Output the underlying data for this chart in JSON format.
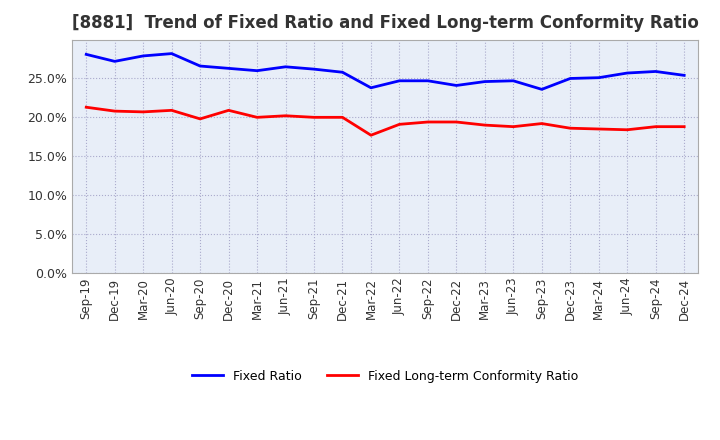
{
  "title": "[8881]  Trend of Fixed Ratio and Fixed Long-term Conformity Ratio",
  "x_labels": [
    "Sep-19",
    "Dec-19",
    "Mar-20",
    "Jun-20",
    "Sep-20",
    "Dec-20",
    "Mar-21",
    "Jun-21",
    "Sep-21",
    "Dec-21",
    "Mar-22",
    "Jun-22",
    "Sep-22",
    "Dec-22",
    "Mar-23",
    "Jun-23",
    "Sep-23",
    "Dec-23",
    "Mar-24",
    "Jun-24",
    "Sep-24",
    "Dec-24"
  ],
  "fixed_ratio": [
    0.281,
    0.272,
    0.279,
    0.282,
    0.266,
    0.263,
    0.26,
    0.265,
    0.262,
    0.258,
    0.238,
    0.247,
    0.247,
    0.241,
    0.246,
    0.247,
    0.236,
    0.25,
    0.251,
    0.257,
    0.259,
    0.254
  ],
  "fixed_lt_ratio": [
    0.213,
    0.208,
    0.207,
    0.209,
    0.198,
    0.209,
    0.2,
    0.202,
    0.2,
    0.2,
    0.177,
    0.191,
    0.194,
    0.194,
    0.19,
    0.188,
    0.192,
    0.186,
    0.185,
    0.184,
    0.188,
    0.188
  ],
  "fixed_ratio_color": "#0000FF",
  "fixed_lt_ratio_color": "#FF0000",
  "ylim": [
    0.0,
    0.3
  ],
  "yticks": [
    0.0,
    0.05,
    0.1,
    0.15,
    0.2,
    0.25
  ],
  "plot_bg_color": "#E8EEF8",
  "background_color": "#FFFFFF",
  "grid_color": "#AAAACC",
  "title_fontsize": 12,
  "line_width": 2.0,
  "legend_labels": [
    "Fixed Ratio",
    "Fixed Long-term Conformity Ratio"
  ]
}
